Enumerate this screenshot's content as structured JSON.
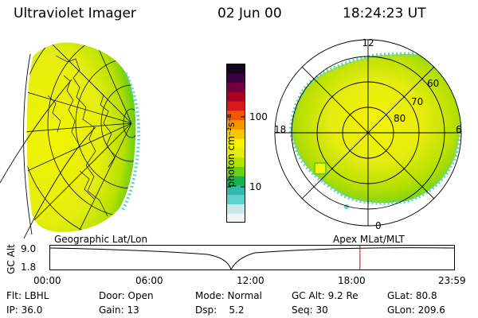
{
  "header": {
    "title": "Ultraviolet Imager",
    "date": "02 Jun 00",
    "time": "18:24:23 UT"
  },
  "colorbar": {
    "unit_label": "photon cm⁻²s⁻¹",
    "ticks": [
      "100",
      "10"
    ],
    "colors": [
      "#f0f4f4",
      "#c8e8e8",
      "#5fd0d0",
      "#34b8a8",
      "#1eb050",
      "#6ed010",
      "#b8e200",
      "#e6ec10",
      "#f4f400",
      "#f4c800",
      "#f49400",
      "#ee5600",
      "#d81818",
      "#aa0022",
      "#700040",
      "#3c0044",
      "#140818"
    ]
  },
  "polar_plot": {
    "clock_labels": {
      "top": "12",
      "left": "18",
      "right": "6",
      "bottom": "0"
    },
    "lat_labels": [
      "60",
      "70",
      "80"
    ]
  },
  "map_label": "Geographic Lat/Lon",
  "polar_label": "Apex MLat/MLT",
  "timeline": {
    "axis_title": "GC Alt",
    "y_ticks": [
      "9.0",
      "1.8"
    ],
    "x_ticks": [
      "00:00",
      "06:00",
      "12:00",
      "18:00",
      "23:59"
    ],
    "current_time_frac": 0.767,
    "colors": {
      "marker": "#cc0000"
    }
  },
  "info": {
    "flt": "Flt: LBHL",
    "door": "Door: Open",
    "mode": "Mode: Normal",
    "gcalt": "GC Alt: 9.2 Re",
    "glat": "GLat: 80.8",
    "ip": "IP: 36.0",
    "gain": "Gain: 13",
    "dsp": "Dsp:    5.2",
    "seq": "Seq: 30",
    "glon": "GLon: 209.6"
  }
}
